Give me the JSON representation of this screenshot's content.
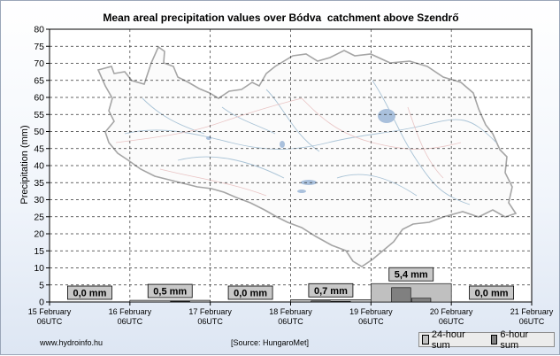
{
  "chart_data": {
    "type": "bar",
    "title": "Mean areal precipitation values over Bódva  catchment above Szendrő",
    "ylabel": "Precipitation (mm)",
    "ylim": [
      0,
      80
    ],
    "ytick_step": 5,
    "yticks": [
      "0",
      "5",
      "10",
      "15",
      "20",
      "25",
      "30",
      "35",
      "40",
      "45",
      "50",
      "55",
      "60",
      "65",
      "70",
      "75",
      "80"
    ],
    "xlim": [
      0,
      6
    ],
    "x_tick_labels": [
      {
        "date": "15 February",
        "time": "06UTC"
      },
      {
        "date": "16 February",
        "time": "06UTC"
      },
      {
        "date": "17 February",
        "time": "06UTC"
      },
      {
        "date": "18 February",
        "time": "06UTC"
      },
      {
        "date": "19 February",
        "time": "06UTC"
      },
      {
        "date": "20 February",
        "time": "06UTC"
      },
      {
        "date": "21 February",
        "time": "06UTC"
      }
    ],
    "grid": true,
    "series": [
      {
        "name": "24-hour sum",
        "color": "#c0c0c0",
        "bin_width_days": 1,
        "start_days": [
          0,
          1,
          2,
          3,
          4,
          5
        ],
        "values": [
          0.0,
          0.5,
          0.0,
          0.7,
          5.4,
          0.0
        ],
        "labels": [
          "0,0 mm",
          "0,5 mm",
          "0,0 mm",
          "0,7 mm",
          "5,4 mm",
          "0,0 mm"
        ]
      },
      {
        "name": "6-hour sum",
        "color": "#808080",
        "bin_width_days": 0.25,
        "start_days": [
          1.5,
          3.25,
          3.5,
          4.25,
          4.5
        ],
        "values": [
          0.2,
          0.3,
          0.2,
          4.2,
          1.1
        ]
      }
    ]
  },
  "footer": {
    "website": "www.hydroinfo.hu",
    "source": "[Source: HungaroMet]"
  },
  "legend": {
    "item_24h": "24-hour sum",
    "item_6h": "6-hour sum"
  },
  "colors": {
    "plot_background": "#ffffff",
    "grid": "#333333",
    "map_outline": "#a5a5a5",
    "rivers": "#a9c3d6",
    "lakes": "#a9c0dc",
    "roads": "#e9c4c4"
  }
}
